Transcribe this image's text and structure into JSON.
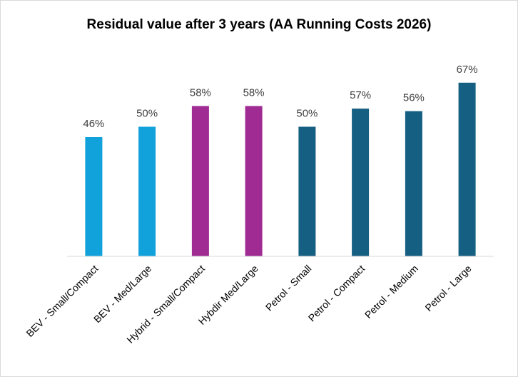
{
  "chart_data": {
    "type": "bar",
    "title": "Residual value after 3 years (AA Running Costs 2026)",
    "xlabel": "",
    "ylabel": "",
    "ylim": [
      0,
      70
    ],
    "grid": false,
    "legend": "none",
    "value_suffix": "%",
    "categories": [
      "BEV - Small/Compact",
      "BEV - Med/Large",
      "Hybrid - Small/Compact",
      "Hybdir Med/Large",
      "Petrol - Small",
      "Petrol - Compact",
      "Petrol - Medium",
      "Petrol - Large"
    ],
    "values": [
      46,
      50,
      58,
      58,
      50,
      57,
      56,
      67
    ],
    "bar_colors": [
      "#12a2db",
      "#12a2db",
      "#a02b93",
      "#a02b93",
      "#156082",
      "#156082",
      "#156082",
      "#156082"
    ]
  }
}
